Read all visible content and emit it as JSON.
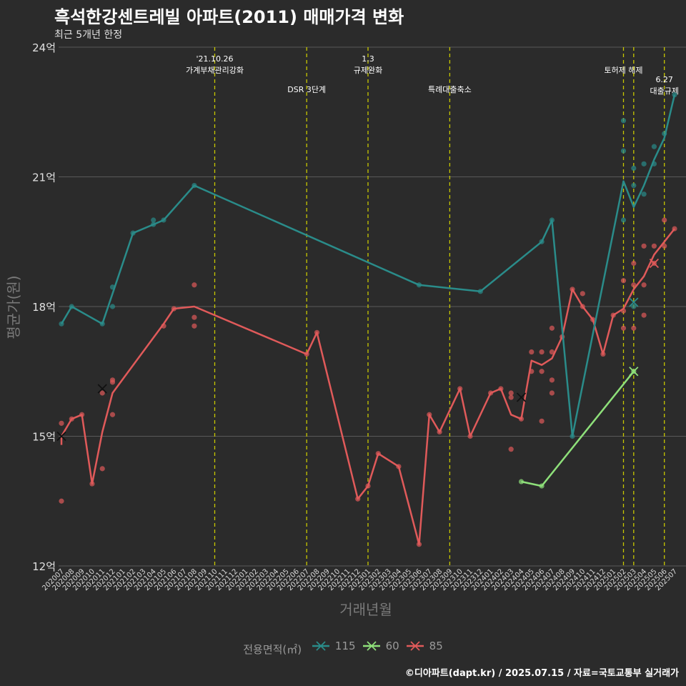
{
  "title": "흑석한강센트레빌 아파트(2011) 매매가격 변화",
  "subtitle": "최근 5개년 한정",
  "caption": "©디아파트(dapt.kr) / 2025.07.15 / 자료=국토교통부 실거래가",
  "colors": {
    "background": "#2b2b2b",
    "grid": "#5a5a5a",
    "event_line": "#c8c800",
    "s115": "#2a8c8a",
    "s60": "#8ee07a",
    "s85": "#e05a5a"
  },
  "chart_data": {
    "type": "line",
    "xlabel": "거래년월",
    "ylabel": "평균가(원)",
    "ylim": [
      12,
      24
    ],
    "y_ticks": [
      "12억",
      "15억",
      "18억",
      "21억",
      "24억"
    ],
    "y_tick_values": [
      12,
      15,
      18,
      21,
      24
    ],
    "grid": true,
    "legend_position": "bottom",
    "legend_title": "전용면적(㎡)",
    "categories": [
      "202007",
      "202008",
      "202009",
      "202010",
      "202011",
      "202012",
      "202101",
      "202102",
      "202103",
      "202104",
      "202105",
      "202106",
      "202107",
      "202108",
      "202109",
      "202110",
      "202111",
      "202112",
      "202201",
      "202202",
      "202203",
      "202204",
      "202205",
      "202206",
      "202207",
      "202208",
      "202209",
      "202210",
      "202211",
      "202212",
      "202301",
      "202302",
      "202303",
      "202304",
      "202305",
      "202306",
      "202307",
      "202308",
      "202309",
      "202310",
      "202311",
      "202312",
      "202401",
      "202402",
      "202403",
      "202404",
      "202405",
      "202406",
      "202407",
      "202408",
      "202409",
      "202410",
      "202411",
      "202412",
      "202501",
      "202502",
      "202503",
      "202504",
      "202505",
      "202506",
      "202507"
    ],
    "events": [
      {
        "x": "202110",
        "label": "'21.10.26\n가계부채관리강화",
        "row": 0
      },
      {
        "x": "202207",
        "label": "DSR 3단계",
        "row": 1
      },
      {
        "x": "202301",
        "label": "1.3\n규제완화",
        "row": 0
      },
      {
        "x": "202309",
        "label": "특례대출축소",
        "row": 1
      },
      {
        "x": "202502",
        "label": "토허제 해제",
        "row": 0
      },
      {
        "x": "202503",
        "label": "",
        "row": 0
      },
      {
        "x": "202506",
        "label": "6.27\n대출규제",
        "row": 2
      }
    ],
    "series": [
      {
        "name": "115",
        "color_key": "s115",
        "line": [
          [
            "202007",
            17.6
          ],
          [
            "202008",
            18.0
          ],
          [
            "202011",
            17.6
          ],
          [
            "202102",
            19.7
          ],
          [
            "202104",
            19.9
          ],
          [
            "202105",
            20.0
          ],
          [
            "202108",
            20.8
          ],
          [
            "202306",
            18.5
          ],
          [
            "202312",
            18.35
          ],
          [
            "202406",
            19.5
          ],
          [
            "202407",
            20.0
          ],
          [
            "202409",
            15.0
          ],
          [
            "202502",
            20.9
          ],
          [
            "202503",
            20.3
          ],
          [
            "202504",
            20.8
          ],
          [
            "202505",
            21.4
          ],
          [
            "202506",
            21.9
          ],
          [
            "202507",
            22.9
          ]
        ],
        "points": [
          [
            "202007",
            17.6
          ],
          [
            "202008",
            18.0
          ],
          [
            "202011",
            17.6
          ],
          [
            "202012",
            18.0
          ],
          [
            "202012",
            18.45
          ],
          [
            "202102",
            19.7
          ],
          [
            "202104",
            19.9
          ],
          [
            "202104",
            20.0
          ],
          [
            "202105",
            20.0
          ],
          [
            "202108",
            20.8
          ],
          [
            "202306",
            18.5
          ],
          [
            "202312",
            18.35
          ],
          [
            "202406",
            19.5
          ],
          [
            "202407",
            20.0
          ],
          [
            "202409",
            15.0
          ],
          [
            "202502",
            22.3
          ],
          [
            "202502",
            21.6
          ],
          [
            "202502",
            20.0
          ],
          [
            "202503",
            21.2
          ],
          [
            "202503",
            20.8
          ],
          [
            "202503",
            18.0
          ],
          [
            "202504",
            21.3
          ],
          [
            "202504",
            20.6
          ],
          [
            "202505",
            21.7
          ],
          [
            "202505",
            21.3
          ],
          [
            "202506",
            22.0
          ],
          [
            "202507",
            22.9
          ]
        ],
        "marker": [
          "202503",
          18.1
        ]
      },
      {
        "name": "60",
        "color_key": "s60",
        "line": [
          [
            "202404",
            13.95
          ],
          [
            "202406",
            13.85
          ],
          [
            "202503",
            16.5
          ]
        ],
        "points": [
          [
            "202404",
            13.95
          ],
          [
            "202406",
            13.85
          ],
          [
            "202503",
            16.5
          ]
        ],
        "marker": [
          "202503",
          16.5
        ]
      },
      {
        "name": "85",
        "color_key": "s85",
        "line": [
          [
            "202007",
            14.8
          ],
          [
            "202007",
            15.0
          ],
          [
            "202008",
            15.4
          ],
          [
            "202009",
            15.5
          ],
          [
            "202010",
            13.9
          ],
          [
            "202011",
            15.1
          ],
          [
            "202012",
            16.0
          ],
          [
            "202105",
            17.6
          ],
          [
            "202106",
            17.95
          ],
          [
            "202108",
            18.0
          ],
          [
            "202207",
            16.9
          ],
          [
            "202208",
            17.4
          ],
          [
            "202212",
            13.55
          ],
          [
            "202301",
            13.85
          ],
          [
            "202302",
            14.6
          ],
          [
            "202304",
            14.3
          ],
          [
            "202306",
            12.5
          ],
          [
            "202307",
            15.5
          ],
          [
            "202308",
            15.1
          ],
          [
            "202310",
            16.1
          ],
          [
            "202311",
            15.0
          ],
          [
            "202401",
            16.0
          ],
          [
            "202402",
            16.1
          ],
          [
            "202403",
            15.5
          ],
          [
            "202404",
            15.4
          ],
          [
            "202405",
            16.75
          ],
          [
            "202406",
            16.65
          ],
          [
            "202407",
            16.8
          ],
          [
            "202408",
            17.3
          ],
          [
            "202409",
            18.4
          ],
          [
            "202410",
            18.0
          ],
          [
            "202411",
            17.7
          ],
          [
            "202412",
            16.9
          ],
          [
            "202501",
            17.8
          ],
          [
            "202502",
            17.95
          ],
          [
            "202503",
            18.4
          ],
          [
            "202504",
            18.7
          ],
          [
            "202505",
            19.2
          ],
          [
            "202506",
            19.5
          ],
          [
            "202507",
            19.8
          ]
        ],
        "points": [
          [
            "202007",
            13.5
          ],
          [
            "202007",
            15.3
          ],
          [
            "202008",
            15.4
          ],
          [
            "202009",
            15.5
          ],
          [
            "202010",
            13.9
          ],
          [
            "202011",
            14.25
          ],
          [
            "202011",
            16.0
          ],
          [
            "202012",
            15.5
          ],
          [
            "202012",
            16.3
          ],
          [
            "202012",
            16.25
          ],
          [
            "202105",
            17.55
          ],
          [
            "202106",
            17.95
          ],
          [
            "202108",
            18.5
          ],
          [
            "202108",
            17.75
          ],
          [
            "202108",
            17.55
          ],
          [
            "202207",
            16.9
          ],
          [
            "202208",
            17.4
          ],
          [
            "202212",
            13.55
          ],
          [
            "202301",
            13.85
          ],
          [
            "202302",
            14.6
          ],
          [
            "202304",
            14.3
          ],
          [
            "202306",
            12.5
          ],
          [
            "202307",
            15.5
          ],
          [
            "202308",
            15.1
          ],
          [
            "202310",
            16.1
          ],
          [
            "202311",
            15.0
          ],
          [
            "202401",
            16.0
          ],
          [
            "202402",
            16.1
          ],
          [
            "202403",
            16.0
          ],
          [
            "202403",
            15.9
          ],
          [
            "202403",
            14.7
          ],
          [
            "202404",
            15.4
          ],
          [
            "202405",
            16.95
          ],
          [
            "202405",
            16.5
          ],
          [
            "202406",
            16.95
          ],
          [
            "202406",
            16.5
          ],
          [
            "202406",
            15.35
          ],
          [
            "202407",
            17.5
          ],
          [
            "202407",
            16.95
          ],
          [
            "202407",
            16.3
          ],
          [
            "202407",
            16.0
          ],
          [
            "202408",
            17.3
          ],
          [
            "202409",
            18.4
          ],
          [
            "202410",
            18.3
          ],
          [
            "202410",
            18.0
          ],
          [
            "202411",
            17.7
          ],
          [
            "202412",
            16.9
          ],
          [
            "202501",
            17.8
          ],
          [
            "202502",
            18.6
          ],
          [
            "202502",
            17.9
          ],
          [
            "202502",
            17.5
          ],
          [
            "202503",
            19.0
          ],
          [
            "202503",
            18.5
          ],
          [
            "202503",
            17.5
          ],
          [
            "202504",
            19.4
          ],
          [
            "202504",
            18.5
          ],
          [
            "202504",
            17.8
          ],
          [
            "202505",
            19.4
          ],
          [
            "202505",
            19.0
          ],
          [
            "202506",
            20.0
          ],
          [
            "202506",
            19.4
          ],
          [
            "202507",
            19.8
          ]
        ],
        "marker": [
          "202505",
          19.0
        ],
        "extra_markers": [
          [
            "202007",
            15.0
          ],
          [
            "202011",
            16.1
          ],
          [
            "202404",
            15.9
          ]
        ]
      }
    ]
  }
}
